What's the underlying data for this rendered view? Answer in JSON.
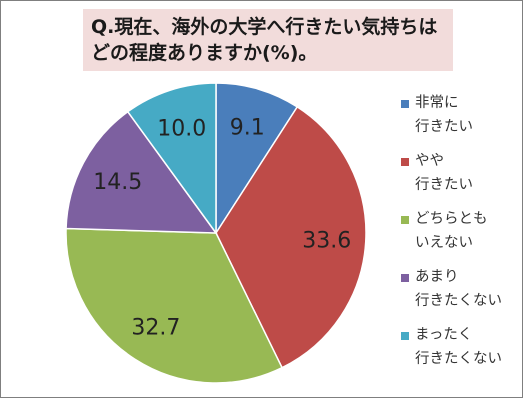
{
  "chart_data": {
    "type": "pie",
    "title": "Q.現在、海外の大学へ行きたい気持ちは\nどの程度ありますか(%)。",
    "categories": [
      "非常に\n行きたい",
      "やや\n行きたい",
      "どちらとも\nいえない",
      "あまり\n行きたくない",
      "まったく\n行きたくない"
    ],
    "values": [
      9.1,
      33.6,
      32.7,
      14.5,
      10.0
    ],
    "value_labels": [
      "9.1",
      "33.6",
      "32.7",
      "14.5",
      "10.0"
    ],
    "colors": [
      "#4a7ebb",
      "#be4b48",
      "#98b954",
      "#7d60a0",
      "#46aac5"
    ],
    "legend_position": "right",
    "start_direction": "top-clockwise"
  }
}
